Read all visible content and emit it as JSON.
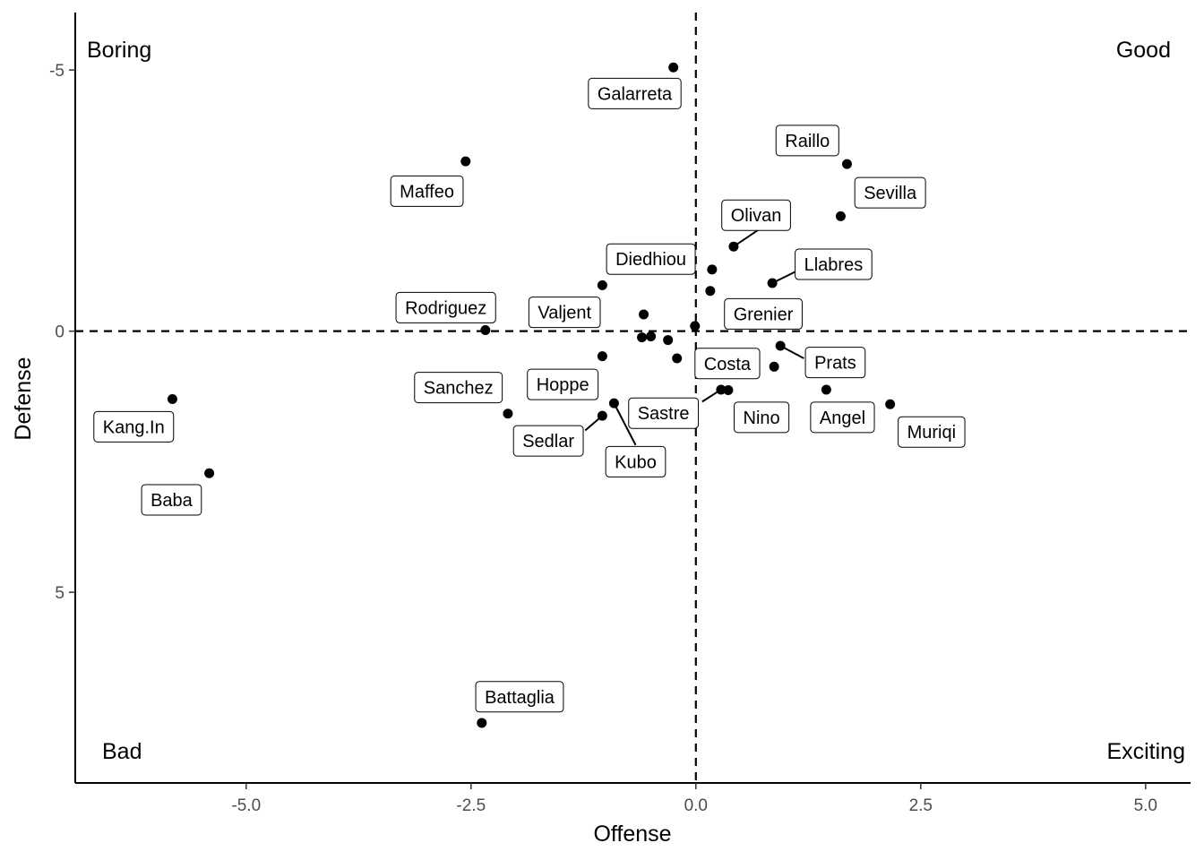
{
  "chart_data": {
    "type": "scatter",
    "title": "",
    "xlabel": "Offense",
    "ylabel": "Defense",
    "xlim": [
      -6.9,
      5.5
    ],
    "ylim": [
      8.65,
      -6.1
    ],
    "y_reversed": true,
    "x_ticks": [
      -5.0,
      -2.5,
      0.0,
      2.5,
      5.0
    ],
    "x_tick_labels": [
      "-5.0",
      "-2.5",
      "0.0",
      "2.5",
      "5.0"
    ],
    "y_ticks": [
      -5,
      0,
      5
    ],
    "y_tick_labels": [
      "-5",
      "0",
      "5"
    ],
    "reference_lines": {
      "x": 0,
      "y": 0,
      "style": "dashed"
    },
    "grid": false,
    "quadrant_labels": {
      "top_left": "Boring",
      "top_right": "Good",
      "bottom_left": "Bad",
      "bottom_right": "Exciting"
    },
    "points": [
      {
        "label": "Galarreta",
        "x": -0.25,
        "y": -5.05
      },
      {
        "label": "Raillo",
        "x": 1.68,
        "y": -3.2
      },
      {
        "label": "Sevilla",
        "x": 1.61,
        "y": -2.2
      },
      {
        "label": "Maffeo",
        "x": -2.56,
        "y": -3.25
      },
      {
        "label": "Olivan",
        "x": 0.42,
        "y": -1.62
      },
      {
        "label": "Diedhiou",
        "x": 0.18,
        "y": -1.18
      },
      {
        "label": "Llabres",
        "x": 0.85,
        "y": -0.92
      },
      {
        "label": "Grenier",
        "x": 0.16,
        "y": -0.77
      },
      {
        "label": "Rodriguez",
        "x": -2.34,
        "y": -0.02
      },
      {
        "label": "Valjent",
        "x": -0.58,
        "y": -0.32
      },
      {
        "label": "Sanchez",
        "x": -2.09,
        "y": 1.58
      },
      {
        "label": "Hoppe",
        "x": -1.04,
        "y": 0.48
      },
      {
        "label": "Costa",
        "x": -0.21,
        "y": 0.52
      },
      {
        "label": "Prats",
        "x": 0.94,
        "y": 0.28
      },
      {
        "label": "Sastre",
        "x": 0.28,
        "y": 1.12
      },
      {
        "label": "Nino",
        "x": 0.36,
        "y": 1.13
      },
      {
        "label": "Angel",
        "x": 1.45,
        "y": 1.12
      },
      {
        "label": "Muriqi",
        "x": 2.16,
        "y": 1.4
      },
      {
        "label": "Sedlar",
        "x": -1.04,
        "y": 1.62
      },
      {
        "label": "Kubo",
        "x": -0.91,
        "y": 1.38
      },
      {
        "label": "Kang.In",
        "x": -5.82,
        "y": 1.3
      },
      {
        "label": "Baba",
        "x": -5.41,
        "y": 2.72
      },
      {
        "label": "Battaglia",
        "x": -2.38,
        "y": 7.5
      },
      {
        "label": "Diedhiou",
        "x": -1.04,
        "y": -0.88
      },
      {
        "label": "Grenier",
        "x": -0.01,
        "y": -0.1
      },
      {
        "label": "Valjent",
        "x": -0.6,
        "y": 0.12
      },
      {
        "label": "Valjent",
        "x": -0.5,
        "y": 0.1
      },
      {
        "label": "Costa",
        "x": -0.31,
        "y": 0.17
      },
      {
        "label": "Prats",
        "x": 0.87,
        "y": 0.68
      }
    ],
    "labels": [
      {
        "text": "Galarreta",
        "x": -0.68,
        "y": -4.55
      },
      {
        "text": "Raillo",
        "x": 1.24,
        "y": -3.65
      },
      {
        "text": "Sevilla",
        "x": 2.16,
        "y": -2.65
      },
      {
        "text": "Maffeo",
        "x": -2.99,
        "y": -2.68
      },
      {
        "text": "Olivan",
        "x": 0.67,
        "y": -2.22
      },
      {
        "text": "Diedhiou",
        "x": -0.5,
        "y": -1.38
      },
      {
        "text": "Llabres",
        "x": 1.53,
        "y": -1.28
      },
      {
        "text": "Grenier",
        "x": 0.75,
        "y": -0.33
      },
      {
        "text": "Rodriguez",
        "x": -2.78,
        "y": -0.45
      },
      {
        "text": "Valjent",
        "x": -1.46,
        "y": -0.36
      },
      {
        "text": "Sanchez",
        "x": -2.64,
        "y": 1.08
      },
      {
        "text": "Hoppe",
        "x": -1.48,
        "y": 1.02
      },
      {
        "text": "Costa",
        "x": 0.35,
        "y": 0.62
      },
      {
        "text": "Prats",
        "x": 1.55,
        "y": 0.6
      },
      {
        "text": "Sastre",
        "x": -0.36,
        "y": 1.57
      },
      {
        "text": "Nino",
        "x": 0.73,
        "y": 1.65
      },
      {
        "text": "Angel",
        "x": 1.63,
        "y": 1.65
      },
      {
        "text": "Muriqi",
        "x": 2.62,
        "y": 1.93
      },
      {
        "text": "Sedlar",
        "x": -1.64,
        "y": 2.1
      },
      {
        "text": "Kubo",
        "x": -0.67,
        "y": 2.5
      },
      {
        "text": "Kang.In",
        "x": -6.25,
        "y": 1.83
      },
      {
        "text": "Baba",
        "x": -5.83,
        "y": 3.23
      },
      {
        "text": "Battaglia",
        "x": -1.96,
        "y": 7.0
      }
    ],
    "leader_lines": [
      {
        "from": [
          0.42,
          -1.62
        ],
        "to": [
          0.73,
          -1.98
        ]
      },
      {
        "from": [
          0.85,
          -0.92
        ],
        "to": [
          1.12,
          -1.15
        ]
      },
      {
        "from": [
          0.94,
          0.28
        ],
        "to": [
          1.2,
          0.52
        ]
      },
      {
        "from": [
          0.28,
          1.12
        ],
        "to": [
          0.07,
          1.35
        ]
      },
      {
        "from": [
          -0.91,
          1.38
        ],
        "to": [
          -0.67,
          2.18
        ]
      },
      {
        "from": [
          -1.04,
          1.62
        ],
        "to": [
          -1.23,
          1.9
        ]
      }
    ]
  }
}
